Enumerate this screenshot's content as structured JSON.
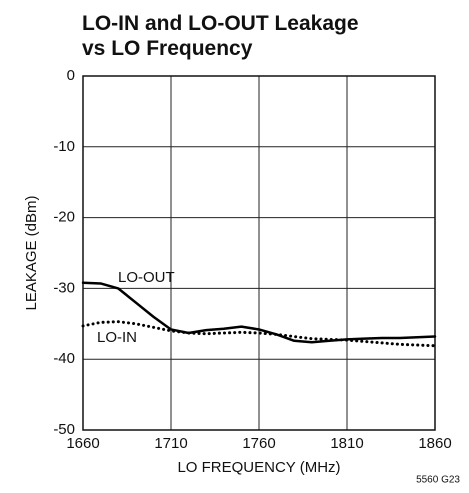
{
  "chart_data": {
    "type": "line",
    "title": [
      "LO-IN and LO-OUT Leakage",
      "vs LO Frequency"
    ],
    "x_label": "LO FREQUENCY (MHz)",
    "y_label": "LEAKAGE (dBm)",
    "footnote": "5560 G23",
    "x": [
      1660,
      1670,
      1680,
      1690,
      1700,
      1710,
      1720,
      1730,
      1740,
      1750,
      1760,
      1770,
      1780,
      1790,
      1800,
      1810,
      1820,
      1830,
      1840,
      1850,
      1860
    ],
    "series": [
      {
        "name": "LO-OUT",
        "color": "#000000",
        "style": "solid",
        "values": [
          -29.2,
          -29.3,
          -30.0,
          -32.0,
          -34.0,
          -35.8,
          -36.3,
          -35.9,
          -35.7,
          -35.4,
          -35.8,
          -36.5,
          -37.4,
          -37.6,
          -37.4,
          -37.2,
          -37.1,
          -37.0,
          -37.0,
          -36.9,
          -36.8
        ]
      },
      {
        "name": "LO-IN",
        "color": "#000000",
        "style": "dotted",
        "values": [
          -35.3,
          -34.8,
          -34.7,
          -35.0,
          -35.5,
          -36.0,
          -36.3,
          -36.4,
          -36.3,
          -36.2,
          -36.3,
          -36.5,
          -36.8,
          -37.1,
          -37.2,
          -37.3,
          -37.5,
          -37.7,
          -37.9,
          -38.0,
          -38.1
        ]
      }
    ],
    "xlim": [
      1660,
      1860
    ],
    "xticks": [
      1660,
      1710,
      1760,
      1810,
      1860
    ],
    "ylim": [
      -50,
      0
    ],
    "yticks": [
      0,
      -10,
      -20,
      -30,
      -40,
      -50
    ],
    "grid": true
  }
}
